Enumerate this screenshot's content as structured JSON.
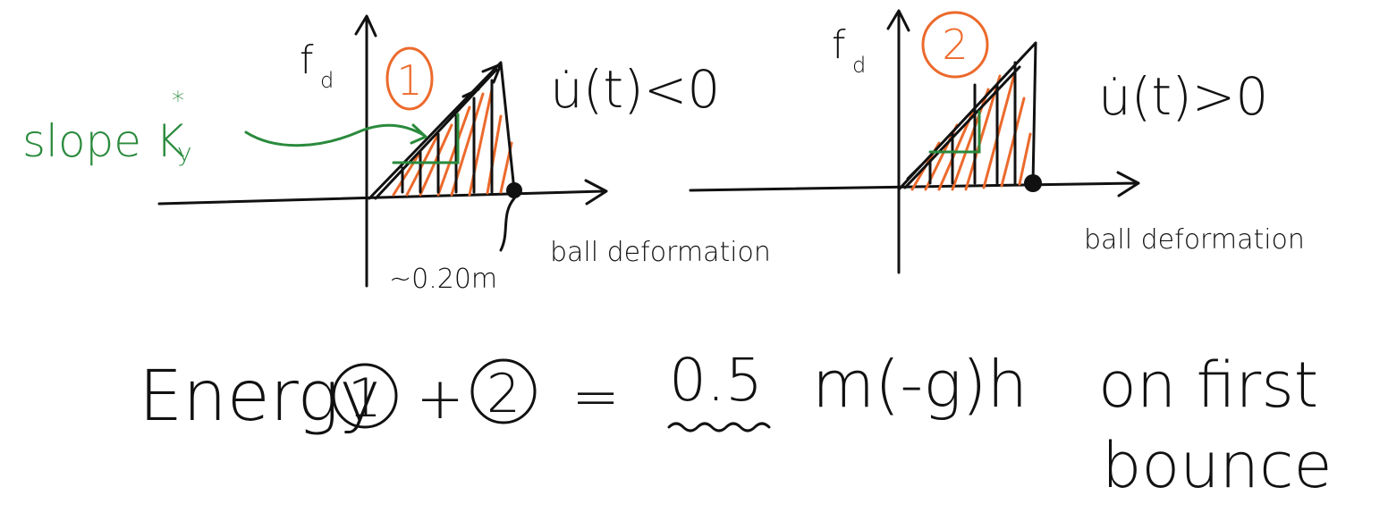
{
  "slope_label": {
    "text": "slope K",
    "superscript": "*",
    "subscript": "y"
  },
  "panels": [
    {
      "y_label": "f",
      "y_label_subscript": "d",
      "number": "1",
      "condition": "u̇(t)<0",
      "x_label": "ball deformation",
      "annotation": "~0.20m"
    },
    {
      "y_label": "f",
      "y_label_subscript": "d",
      "number": "2",
      "condition": "u̇(t)>0",
      "x_label": "ball deformation"
    }
  ],
  "equation": {
    "word": "Energy",
    "term_1": "1",
    "plus": "+",
    "term_2": "2",
    "equals": "=",
    "coefficient": "0.5",
    "expression": "m(-g)h",
    "note_line_1": "on first",
    "note_line_2": "bounce"
  }
}
